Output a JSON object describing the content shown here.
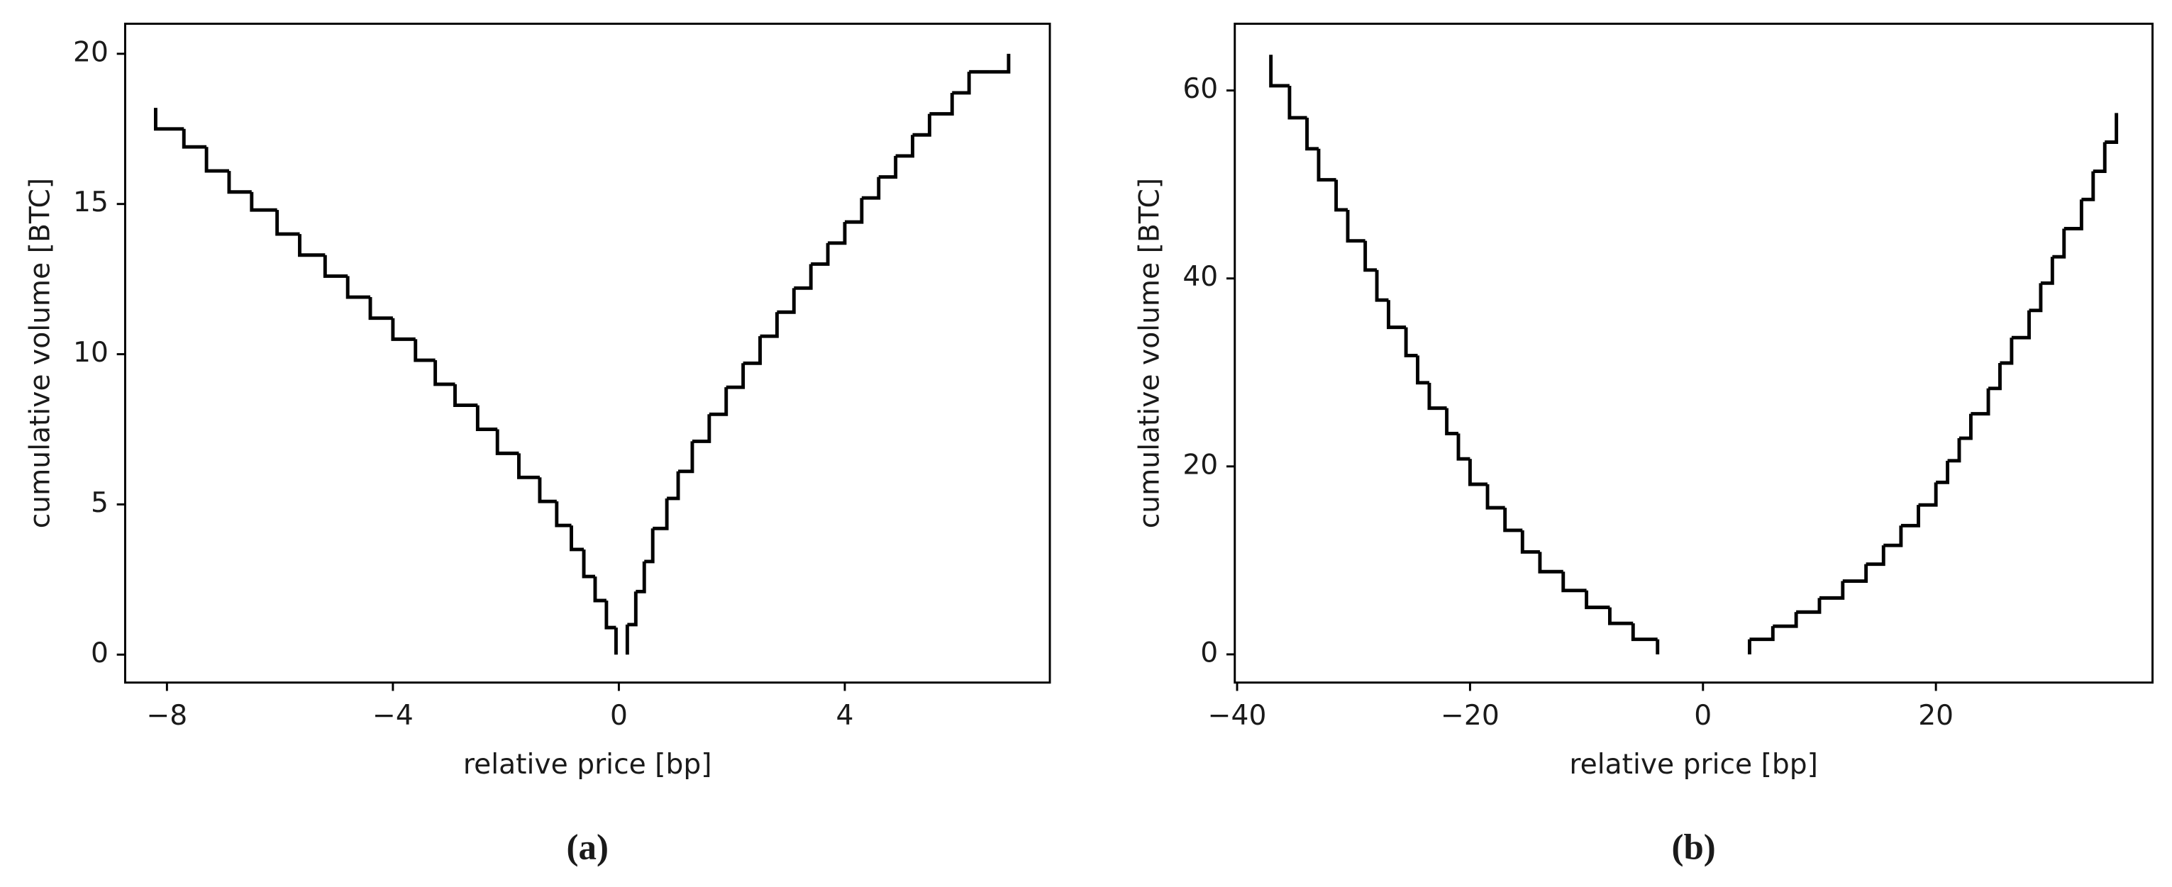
{
  "chart_data": [
    {
      "type": "line",
      "drawstyle": "steps",
      "panel_label": "(a)",
      "x_label": "relative price [bp]",
      "y_label": "cumulative volume [BTC]",
      "xlim": [
        -8.74,
        7.63
      ],
      "ylim": [
        -0.93,
        21.0
      ],
      "xticks": [
        {
          "value": -8,
          "label": "−8"
        },
        {
          "value": -4,
          "label": "−4"
        },
        0,
        4
      ],
      "yticks": [
        0,
        5,
        10,
        15,
        20
      ],
      "series": [
        {
          "color": "#000000",
          "x": [
            -0.05,
            -0.05,
            -0.22,
            -0.42,
            -0.62,
            -0.84,
            -1.1,
            -1.4,
            -1.77,
            -2.15,
            -2.5,
            -2.9,
            -3.25,
            -3.6,
            -4.0,
            -4.4,
            -4.8,
            -5.2,
            -5.65,
            -6.05,
            -6.5,
            -6.9,
            -7.3,
            -7.7,
            -8.2
          ],
          "values": [
            0,
            0.9,
            1.8,
            2.6,
            3.5,
            4.3,
            5.1,
            5.9,
            6.7,
            7.5,
            8.3,
            9.0,
            9.8,
            10.5,
            11.2,
            11.9,
            12.6,
            13.3,
            14.0,
            14.8,
            15.4,
            16.1,
            16.9,
            17.5,
            18.2
          ]
        },
        {
          "color": "#000000",
          "x": [
            0.15,
            0.15,
            0.3,
            0.45,
            0.6,
            0.85,
            1.05,
            1.3,
            1.6,
            1.9,
            2.2,
            2.5,
            2.8,
            3.1,
            3.4,
            3.7,
            4.0,
            4.3,
            4.6,
            4.9,
            5.2,
            5.5,
            5.9,
            6.2,
            6.55,
            6.9
          ],
          "values": [
            0,
            1.0,
            2.1,
            3.1,
            4.2,
            5.2,
            6.1,
            7.1,
            8.0,
            8.9,
            9.7,
            10.6,
            11.4,
            12.2,
            13.0,
            13.7,
            14.4,
            15.2,
            15.9,
            16.6,
            17.3,
            18.0,
            18.7,
            19.4,
            19.4,
            20.0
          ]
        }
      ]
    },
    {
      "type": "line",
      "drawstyle": "steps",
      "panel_label": "(b)",
      "x_label": "relative price [bp]",
      "y_label": "cumulative volume [BTC]",
      "xlim": [
        -40.2,
        38.6
      ],
      "ylim": [
        -3.0,
        67.1
      ],
      "xticks": [
        {
          "value": -40,
          "label": "−40"
        },
        {
          "value": -20,
          "label": "−20"
        },
        0,
        20
      ],
      "yticks": [
        0,
        20,
        40,
        60
      ],
      "series": [
        {
          "color": "#000000",
          "x": [
            -3.9,
            -3.9,
            -6,
            -8,
            -10,
            -12,
            -14,
            -15.5,
            -17,
            -18.5,
            -20,
            -21,
            -22,
            -23.5,
            -24.5,
            -25.5,
            -27,
            -28,
            -29,
            -30.5,
            -31.5,
            -33,
            -34,
            -35.5,
            -37.1
          ],
          "values": [
            0,
            1.6,
            3.3,
            5.0,
            6.8,
            8.8,
            10.9,
            13.2,
            15.6,
            18.1,
            20.8,
            23.5,
            26.2,
            28.9,
            31.8,
            34.8,
            37.7,
            40.9,
            44.0,
            47.3,
            50.5,
            53.8,
            57.1,
            60.5,
            63.8
          ]
        },
        {
          "color": "#000000",
          "x": [
            4.0,
            4.0,
            6,
            8,
            10,
            12,
            14,
            15.5,
            17,
            18.5,
            20,
            21,
            22,
            23,
            24.5,
            25.5,
            26.5,
            28,
            29,
            30,
            31,
            32.5,
            33.5,
            34.5,
            35.5
          ],
          "values": [
            0,
            1.6,
            3.0,
            4.5,
            6.0,
            7.8,
            9.6,
            11.6,
            13.7,
            15.9,
            18.3,
            20.6,
            23.0,
            25.6,
            28.3,
            31.0,
            33.7,
            36.6,
            39.5,
            42.3,
            45.3,
            48.4,
            51.4,
            54.5,
            57.6
          ]
        }
      ]
    }
  ]
}
